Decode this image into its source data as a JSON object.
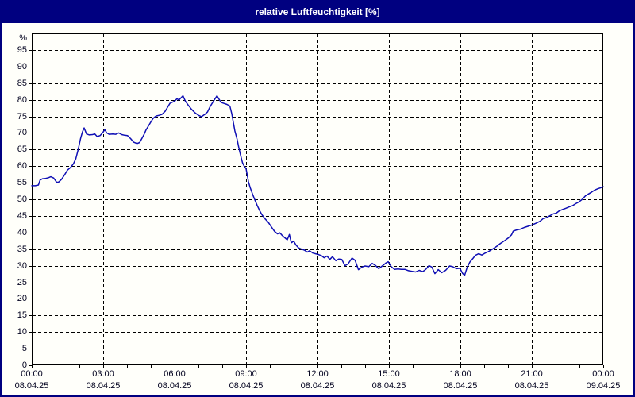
{
  "window": {
    "title": "relative Luftfeuchtigkeit [%]"
  },
  "colors": {
    "titlebar_bg": "#000080",
    "titlebar_text": "#ffffff",
    "frame_border": "#000080",
    "panel_bg": "#fffffa",
    "plot_border": "#000000",
    "grid_color": "#000000",
    "axis_text": "#00001e",
    "line_color": "#0f0fb4"
  },
  "chart_data": {
    "type": "line",
    "title": "relative Luftfeuchtigkeit [%]",
    "ylabel": "%",
    "y_axis_unit": "%",
    "ylim": [
      0,
      100
    ],
    "y_tick_step": 5,
    "y_ticks": [
      0,
      5,
      10,
      15,
      20,
      25,
      30,
      35,
      40,
      45,
      50,
      55,
      60,
      65,
      70,
      75,
      80,
      85,
      90,
      95
    ],
    "x_hours_range": [
      0,
      24
    ],
    "x_minor_tick_interval_hours": 1,
    "x_major_grid_interval_hours": 3,
    "grid": "dashed",
    "legend": "none",
    "x_major_ticks": [
      {
        "hour": 0,
        "time": "00:00",
        "date": "08.04.25"
      },
      {
        "hour": 3,
        "time": "03:00",
        "date": "08.04.25"
      },
      {
        "hour": 6,
        "time": "06:00",
        "date": "08.04.25"
      },
      {
        "hour": 9,
        "time": "09:00",
        "date": "08.04.25"
      },
      {
        "hour": 12,
        "time": "12:00",
        "date": "08.04.25"
      },
      {
        "hour": 15,
        "time": "15:00",
        "date": "08.04.25"
      },
      {
        "hour": 18,
        "time": "18:00",
        "date": "08.04.25"
      },
      {
        "hour": 21,
        "time": "21:00",
        "date": "08.04.25"
      },
      {
        "hour": 24,
        "time": "00:00",
        "date": "09.04.25"
      }
    ],
    "series": [
      {
        "name": "relative Luftfeuchtigkeit",
        "unit": "%",
        "points": [
          [
            0.0,
            54.1
          ],
          [
            0.15,
            54.1
          ],
          [
            0.28,
            54.3
          ],
          [
            0.35,
            55.8
          ],
          [
            0.45,
            56.2
          ],
          [
            0.58,
            56.3
          ],
          [
            0.7,
            56.5
          ],
          [
            0.8,
            56.8
          ],
          [
            0.92,
            56.4
          ],
          [
            1.05,
            55.1
          ],
          [
            1.13,
            55.2
          ],
          [
            1.25,
            56.0
          ],
          [
            1.38,
            57.4
          ],
          [
            1.5,
            58.8
          ],
          [
            1.63,
            59.6
          ],
          [
            1.75,
            60.7
          ],
          [
            1.85,
            62.2
          ],
          [
            1.95,
            65.0
          ],
          [
            2.05,
            68.3
          ],
          [
            2.13,
            70.3
          ],
          [
            2.2,
            71.5
          ],
          [
            2.3,
            69.7
          ],
          [
            2.42,
            69.4
          ],
          [
            2.55,
            69.5
          ],
          [
            2.65,
            69.7
          ],
          [
            2.75,
            68.9
          ],
          [
            2.87,
            69.2
          ],
          [
            2.97,
            70.0
          ],
          [
            3.07,
            71.0
          ],
          [
            3.15,
            70.0
          ],
          [
            3.25,
            69.6
          ],
          [
            3.4,
            69.7
          ],
          [
            3.53,
            69.6
          ],
          [
            3.65,
            70.0
          ],
          [
            3.78,
            69.5
          ],
          [
            3.9,
            69.3
          ],
          [
            4.02,
            69.2
          ],
          [
            4.15,
            68.3
          ],
          [
            4.28,
            67.2
          ],
          [
            4.42,
            66.8
          ],
          [
            4.53,
            67.1
          ],
          [
            4.63,
            68.4
          ],
          [
            4.72,
            69.6
          ],
          [
            4.8,
            70.9
          ],
          [
            4.9,
            72.1
          ],
          [
            5.0,
            73.3
          ],
          [
            5.1,
            74.4
          ],
          [
            5.22,
            75.1
          ],
          [
            5.35,
            75.3
          ],
          [
            5.47,
            75.6
          ],
          [
            5.6,
            76.5
          ],
          [
            5.7,
            77.7
          ],
          [
            5.8,
            78.9
          ],
          [
            5.92,
            79.3
          ],
          [
            6.02,
            79.7
          ],
          [
            6.1,
            80.3
          ],
          [
            6.18,
            79.9
          ],
          [
            6.27,
            80.6
          ],
          [
            6.35,
            81.2
          ],
          [
            6.45,
            79.6
          ],
          [
            6.57,
            78.4
          ],
          [
            6.7,
            77.2
          ],
          [
            6.85,
            76.1
          ],
          [
            7.0,
            75.3
          ],
          [
            7.13,
            74.9
          ],
          [
            7.27,
            75.6
          ],
          [
            7.38,
            76.3
          ],
          [
            7.48,
            77.8
          ],
          [
            7.6,
            79.2
          ],
          [
            7.7,
            80.3
          ],
          [
            7.78,
            81.2
          ],
          [
            7.87,
            80.1
          ],
          [
            7.95,
            79.2
          ],
          [
            8.07,
            78.9
          ],
          [
            8.2,
            78.6
          ],
          [
            8.32,
            78.1
          ],
          [
            8.4,
            75.8
          ],
          [
            8.47,
            73.0
          ],
          [
            8.53,
            70.6
          ],
          [
            8.62,
            68.2
          ],
          [
            8.7,
            65.4
          ],
          [
            8.78,
            63.0
          ],
          [
            8.85,
            61.0
          ],
          [
            8.92,
            60.0
          ],
          [
            9.0,
            59.2
          ],
          [
            9.05,
            57.3
          ],
          [
            9.1,
            55.3
          ],
          [
            9.17,
            53.6
          ],
          [
            9.27,
            51.6
          ],
          [
            9.37,
            49.8
          ],
          [
            9.47,
            48.1
          ],
          [
            9.57,
            46.6
          ],
          [
            9.67,
            45.3
          ],
          [
            9.8,
            44.1
          ],
          [
            9.93,
            43.1
          ],
          [
            10.07,
            41.6
          ],
          [
            10.2,
            40.3
          ],
          [
            10.32,
            39.6
          ],
          [
            10.42,
            39.9
          ],
          [
            10.52,
            39.1
          ],
          [
            10.63,
            38.4
          ],
          [
            10.73,
            37.8
          ],
          [
            10.82,
            39.4
          ],
          [
            10.9,
            36.9
          ],
          [
            11.0,
            37.4
          ],
          [
            11.1,
            36.2
          ],
          [
            11.2,
            35.4
          ],
          [
            11.32,
            35.0
          ],
          [
            11.45,
            34.7
          ],
          [
            11.57,
            34.1
          ],
          [
            11.67,
            34.5
          ],
          [
            11.8,
            33.8
          ],
          [
            11.92,
            33.6
          ],
          [
            12.03,
            33.4
          ],
          [
            12.17,
            33.0
          ],
          [
            12.28,
            32.4
          ],
          [
            12.4,
            32.9
          ],
          [
            12.52,
            31.9
          ],
          [
            12.63,
            32.7
          ],
          [
            12.77,
            31.5
          ],
          [
            12.9,
            32.0
          ],
          [
            13.02,
            31.9
          ],
          [
            13.15,
            30.0
          ],
          [
            13.28,
            30.5
          ],
          [
            13.45,
            32.3
          ],
          [
            13.58,
            31.6
          ],
          [
            13.72,
            28.8
          ],
          [
            13.87,
            29.6
          ],
          [
            14.0,
            29.9
          ],
          [
            14.15,
            29.7
          ],
          [
            14.3,
            30.7
          ],
          [
            14.43,
            30.1
          ],
          [
            14.57,
            29.1
          ],
          [
            14.72,
            29.9
          ],
          [
            14.87,
            30.8
          ],
          [
            14.97,
            31.2
          ],
          [
            15.1,
            29.7
          ],
          [
            15.23,
            28.9
          ],
          [
            15.38,
            29.0
          ],
          [
            15.52,
            28.9
          ],
          [
            15.67,
            28.9
          ],
          [
            15.82,
            28.5
          ],
          [
            15.97,
            28.3
          ],
          [
            16.12,
            28.1
          ],
          [
            16.27,
            28.6
          ],
          [
            16.42,
            28.2
          ],
          [
            16.55,
            28.9
          ],
          [
            16.68,
            30.0
          ],
          [
            16.8,
            29.6
          ],
          [
            16.93,
            27.6
          ],
          [
            17.07,
            28.8
          ],
          [
            17.22,
            27.9
          ],
          [
            17.38,
            28.6
          ],
          [
            17.55,
            29.9
          ],
          [
            17.68,
            29.7
          ],
          [
            17.83,
            29.1
          ],
          [
            17.98,
            29.2
          ],
          [
            18.1,
            27.6
          ],
          [
            18.18,
            27.1
          ],
          [
            18.28,
            29.4
          ],
          [
            18.4,
            31.1
          ],
          [
            18.52,
            32.1
          ],
          [
            18.63,
            33.1
          ],
          [
            18.77,
            33.6
          ],
          [
            18.9,
            33.2
          ],
          [
            19.02,
            33.7
          ],
          [
            19.17,
            34.2
          ],
          [
            19.35,
            35.0
          ],
          [
            19.52,
            35.8
          ],
          [
            19.68,
            36.7
          ],
          [
            19.85,
            37.5
          ],
          [
            20.02,
            38.4
          ],
          [
            20.15,
            39.3
          ],
          [
            20.22,
            40.4
          ],
          [
            20.37,
            40.8
          ],
          [
            20.52,
            41.0
          ],
          [
            20.68,
            41.5
          ],
          [
            20.85,
            41.9
          ],
          [
            21.02,
            42.3
          ],
          [
            21.18,
            42.8
          ],
          [
            21.35,
            43.4
          ],
          [
            21.48,
            44.2
          ],
          [
            21.62,
            44.5
          ],
          [
            21.77,
            45.1
          ],
          [
            21.9,
            45.6
          ],
          [
            22.02,
            45.8
          ],
          [
            22.15,
            46.5
          ],
          [
            22.28,
            46.9
          ],
          [
            22.43,
            47.3
          ],
          [
            22.57,
            47.7
          ],
          [
            22.72,
            48.1
          ],
          [
            22.85,
            48.7
          ],
          [
            22.98,
            49.2
          ],
          [
            23.12,
            50.0
          ],
          [
            23.25,
            51.0
          ],
          [
            23.38,
            51.6
          ],
          [
            23.52,
            52.2
          ],
          [
            23.65,
            52.8
          ],
          [
            23.78,
            53.2
          ],
          [
            23.9,
            53.5
          ],
          [
            24.0,
            53.8
          ]
        ]
      }
    ]
  }
}
